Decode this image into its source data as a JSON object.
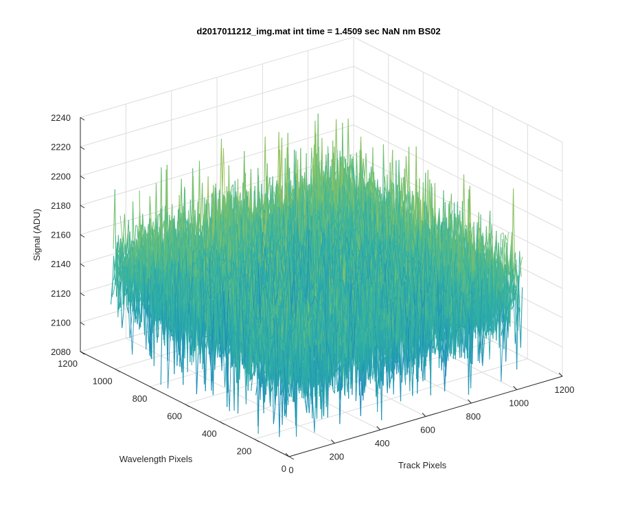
{
  "chart_data": {
    "type": "surface",
    "title": "d2017011212_img.mat int time = 1.4509 sec  NaN nm BS02",
    "xlabel": "Track Pixels",
    "ylabel": "Wavelength Pixels",
    "zlabel": "Signal (ADU)",
    "xlim": [
      0,
      1200
    ],
    "ylim": [
      0,
      1200
    ],
    "zlim": [
      2080,
      2240
    ],
    "x_ticks": [
      "0",
      "200",
      "400",
      "600",
      "800",
      "1000",
      "1200"
    ],
    "y_ticks": [
      "0",
      "200",
      "400",
      "600",
      "800",
      "1000",
      "1200"
    ],
    "z_ticks": [
      "2080",
      "2100",
      "2120",
      "2140",
      "2160",
      "2180",
      "2200",
      "2220",
      "2240"
    ],
    "grid": true,
    "surface": {
      "x_extent": [
        0,
        1024
      ],
      "y_extent": [
        0,
        1024
      ],
      "mean_signal": 2145,
      "typical_range": [
        2100,
        2200
      ],
      "max_signal": 2225,
      "min_signal": 2085,
      "colormap": "parula"
    },
    "colors": {
      "low": "#0f74c9",
      "mid": "#2fb0a6",
      "midhigh": "#7cc36a",
      "high": "#d7bd45",
      "axis": "#262626",
      "grid": "#dcdcdc"
    }
  }
}
